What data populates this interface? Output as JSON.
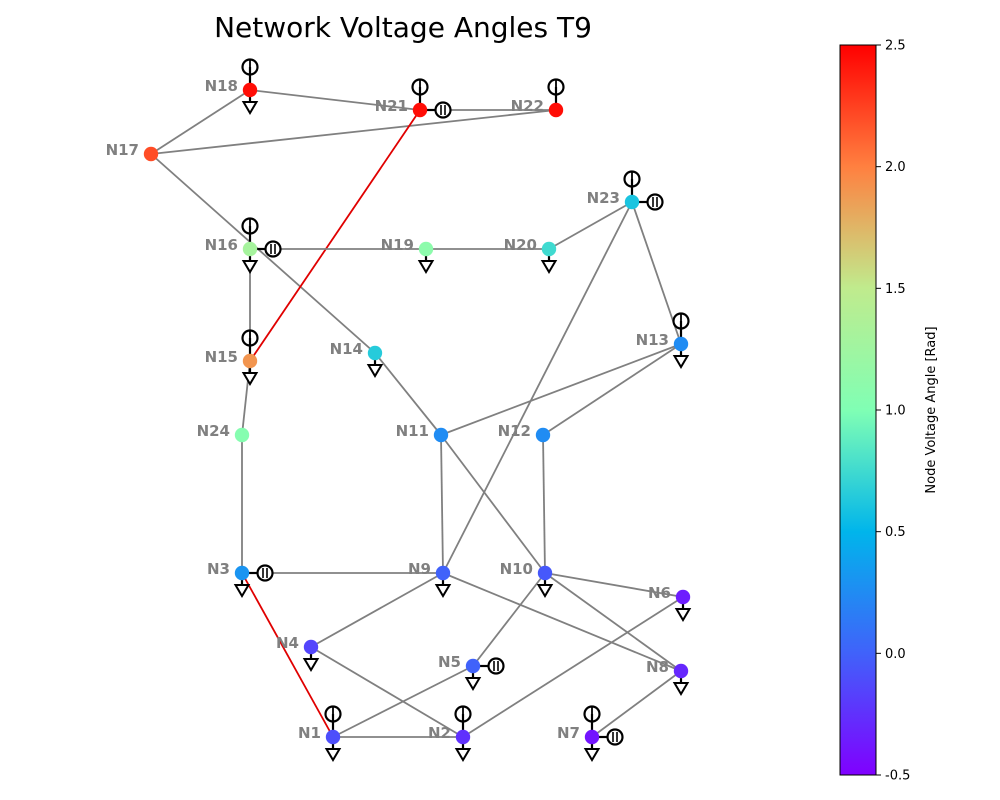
{
  "title": "Network Voltage Angles T9",
  "colorbar": {
    "label": "Node Voltage Angle [Rad]",
    "min": -0.5,
    "max": 2.5,
    "colormap": "rainbow",
    "ticks": [
      "-0.5",
      "0.0",
      "0.5",
      "1.0",
      "1.5",
      "2.0",
      "2.5"
    ]
  },
  "colors": {
    "line": "#808080",
    "overloaded_line": "#e00000",
    "label": "#808080",
    "symbol": "#000000"
  },
  "nodes": [
    {
      "id": "N1",
      "label": "N1",
      "angle": -0.1,
      "gen": true,
      "load": true,
      "storage": false
    },
    {
      "id": "N2",
      "label": "N2",
      "angle": -0.25,
      "gen": true,
      "load": true,
      "storage": false
    },
    {
      "id": "N3",
      "label": "N3",
      "angle": 0.3,
      "gen": false,
      "load": true,
      "storage": true
    },
    {
      "id": "N4",
      "label": "N4",
      "angle": -0.15,
      "gen": false,
      "load": true,
      "storage": false
    },
    {
      "id": "N5",
      "label": "N5",
      "angle": 0.0,
      "gen": false,
      "load": true,
      "storage": true
    },
    {
      "id": "N6",
      "label": "N6",
      "angle": -0.35,
      "gen": false,
      "load": true,
      "storage": false
    },
    {
      "id": "N7",
      "label": "N7",
      "angle": -0.4,
      "gen": true,
      "load": true,
      "storage": true
    },
    {
      "id": "N8",
      "label": "N8",
      "angle": -0.3,
      "gen": false,
      "load": true,
      "storage": false
    },
    {
      "id": "N9",
      "label": "N9",
      "angle": 0.0,
      "gen": false,
      "load": true,
      "storage": false
    },
    {
      "id": "N10",
      "label": "N10",
      "angle": -0.05,
      "gen": false,
      "load": true,
      "storage": false
    },
    {
      "id": "N11",
      "label": "N11",
      "angle": 0.25,
      "gen": false,
      "load": false,
      "storage": false
    },
    {
      "id": "N12",
      "label": "N12",
      "angle": 0.25,
      "gen": false,
      "load": false,
      "storage": false
    },
    {
      "id": "N13",
      "label": "N13",
      "angle": 0.25,
      "gen": true,
      "load": true,
      "storage": false
    },
    {
      "id": "N14",
      "label": "N14",
      "angle": 0.65,
      "gen": false,
      "load": true,
      "storage": false
    },
    {
      "id": "N15",
      "label": "N15",
      "angle": 1.9,
      "gen": true,
      "load": true,
      "storage": false
    },
    {
      "id": "N16",
      "label": "N16",
      "angle": 1.3,
      "gen": true,
      "load": true,
      "storage": true
    },
    {
      "id": "N17",
      "label": "N17",
      "angle": 2.2,
      "gen": false,
      "load": false,
      "storage": false
    },
    {
      "id": "N18",
      "label": "N18",
      "angle": 2.45,
      "gen": true,
      "load": true,
      "storage": false
    },
    {
      "id": "N19",
      "label": "N19",
      "angle": 1.1,
      "gen": false,
      "load": true,
      "storage": false
    },
    {
      "id": "N20",
      "label": "N20",
      "angle": 0.75,
      "gen": false,
      "load": true,
      "storage": false
    },
    {
      "id": "N21",
      "label": "N21",
      "angle": 2.45,
      "gen": true,
      "load": false,
      "storage": true
    },
    {
      "id": "N22",
      "label": "N22",
      "angle": 2.45,
      "gen": true,
      "load": false,
      "storage": false
    },
    {
      "id": "N23",
      "label": "N23",
      "angle": 0.6,
      "gen": true,
      "load": false,
      "storage": true
    },
    {
      "id": "N24",
      "label": "N24",
      "angle": 1.05,
      "gen": false,
      "load": false,
      "storage": false
    }
  ],
  "edges": [
    {
      "from": "N18",
      "to": "N21",
      "overloaded": false
    },
    {
      "from": "N21",
      "to": "N22",
      "overloaded": false
    },
    {
      "from": "N17",
      "to": "N18",
      "overloaded": false
    },
    {
      "from": "N17",
      "to": "N22",
      "overloaded": false
    },
    {
      "from": "N17",
      "to": "N14",
      "overloaded": false
    },
    {
      "from": "N21",
      "to": "N15",
      "overloaded": true
    },
    {
      "from": "N16",
      "to": "N19",
      "overloaded": false
    },
    {
      "from": "N19",
      "to": "N20",
      "overloaded": false
    },
    {
      "from": "N20",
      "to": "N23",
      "overloaded": false
    },
    {
      "from": "N23",
      "to": "N13",
      "overloaded": false
    },
    {
      "from": "N23",
      "to": "N9",
      "overloaded": false
    },
    {
      "from": "N16",
      "to": "N15",
      "overloaded": false
    },
    {
      "from": "N15",
      "to": "N24",
      "overloaded": false
    },
    {
      "from": "N24",
      "to": "N3",
      "overloaded": false
    },
    {
      "from": "N14",
      "to": "N11",
      "overloaded": false
    },
    {
      "from": "N11",
      "to": "N13",
      "overloaded": false
    },
    {
      "from": "N12",
      "to": "N13",
      "overloaded": false
    },
    {
      "from": "N11",
      "to": "N9",
      "overloaded": false
    },
    {
      "from": "N11",
      "to": "N10",
      "overloaded": false
    },
    {
      "from": "N12",
      "to": "N10",
      "overloaded": false
    },
    {
      "from": "N3",
      "to": "N9",
      "overloaded": false
    },
    {
      "from": "N3",
      "to": "N1",
      "overloaded": true
    },
    {
      "from": "N9",
      "to": "N4",
      "overloaded": false
    },
    {
      "from": "N9",
      "to": "N8",
      "overloaded": false
    },
    {
      "from": "N10",
      "to": "N6",
      "overloaded": false
    },
    {
      "from": "N10",
      "to": "N8",
      "overloaded": false
    },
    {
      "from": "N10",
      "to": "N5",
      "overloaded": false
    },
    {
      "from": "N4",
      "to": "N2",
      "overloaded": false
    },
    {
      "from": "N1",
      "to": "N2",
      "overloaded": false
    },
    {
      "from": "N1",
      "to": "N5",
      "overloaded": false
    },
    {
      "from": "N2",
      "to": "N6",
      "overloaded": false
    },
    {
      "from": "N7",
      "to": "N8",
      "overloaded": false
    }
  ]
}
